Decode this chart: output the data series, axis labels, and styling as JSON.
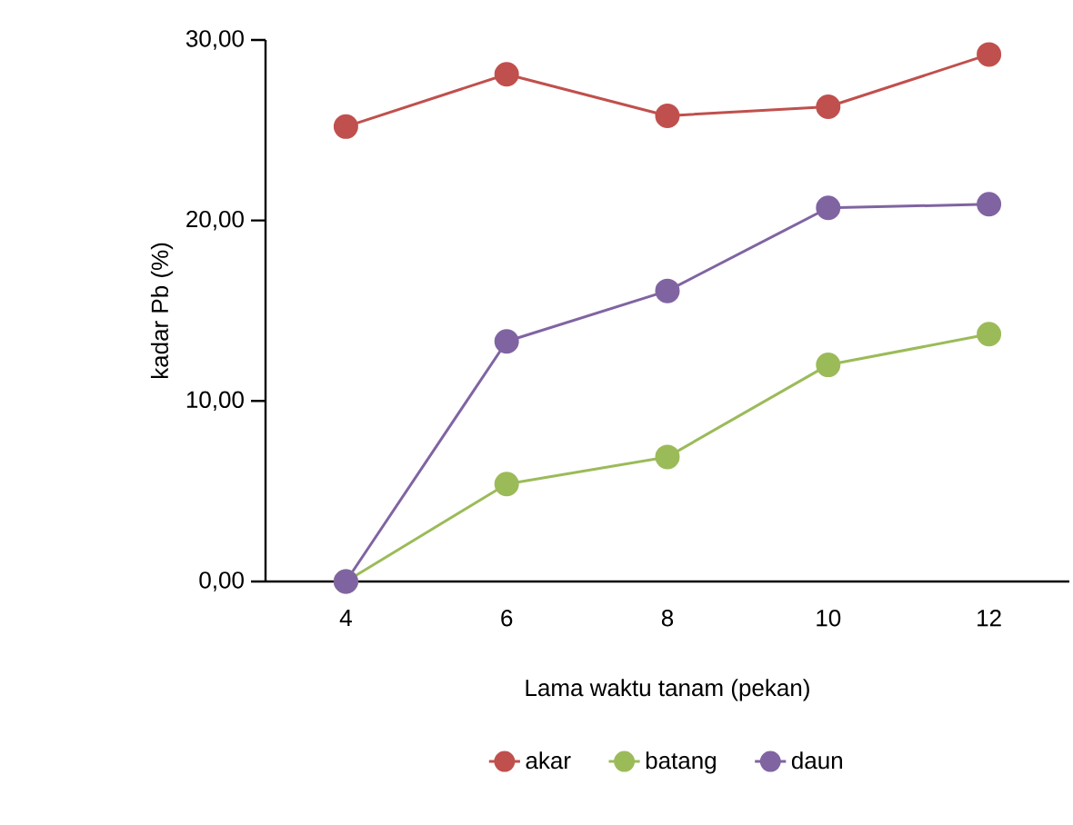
{
  "chart_data": {
    "type": "line",
    "xlabel": "Lama waktu tanam (pekan)",
    "ylabel": "kadar Pb (%)",
    "categories": [
      "4",
      "6",
      "8",
      "10",
      "12"
    ],
    "ylim": [
      0,
      30
    ],
    "yticks": [
      {
        "value": 0,
        "label": "0,00"
      },
      {
        "value": 10,
        "label": "10,00"
      },
      {
        "value": 20,
        "label": "20,00"
      },
      {
        "value": 30,
        "label": "30,00"
      }
    ],
    "series": [
      {
        "name": "akar",
        "color": "#c0504d",
        "values": [
          25.2,
          28.1,
          25.8,
          26.3,
          29.2
        ]
      },
      {
        "name": "batang",
        "color": "#9bbb59",
        "values": [
          0,
          5.4,
          6.9,
          12.0,
          13.7
        ]
      },
      {
        "name": "daun",
        "color": "#8064a2",
        "values": [
          0,
          13.3,
          16.1,
          20.7,
          20.9
        ]
      }
    ],
    "marker": "circle",
    "grid": false,
    "legend": "bottom"
  }
}
